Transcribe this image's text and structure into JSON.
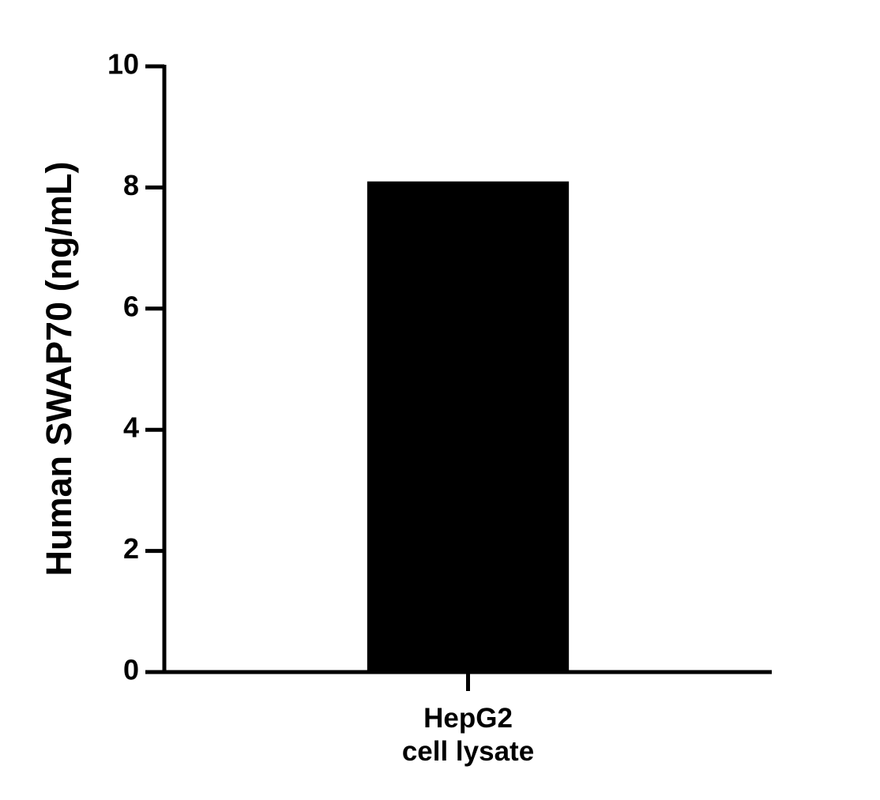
{
  "chart_data": {
    "type": "bar",
    "y_label": "Human SWAP70 (ng/mL)",
    "categories": [
      "HepG2\ncell lysate"
    ],
    "values": [
      8.1
    ],
    "color": "#000000",
    "ylim": [
      0,
      10
    ],
    "yticks": [
      0,
      2,
      4,
      6,
      8,
      10
    ],
    "grid": false
  }
}
